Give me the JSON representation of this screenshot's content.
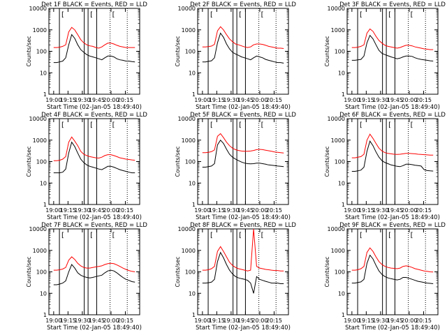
{
  "chart_data": {
    "type": "line",
    "ylabel": "Counts/sec",
    "xlabel": "Start Time (02-Jan-05 18:49:40)",
    "x_tick_labels": [
      "19:00",
      "19:15",
      "19:30",
      "19:45",
      "20:00",
      "20:15"
    ],
    "y_tick_labels": [
      "1",
      "10",
      "100",
      "1000",
      "10000"
    ],
    "ylim": [
      1,
      10000
    ],
    "y_scale": "log",
    "xlim": [
      "18:55",
      "20:30"
    ],
    "legend_marker": "[",
    "vertical_lines_solid": [
      "19:06",
      "19:32",
      "19:36",
      "19:45"
    ],
    "vertical_lines_dotted": [
      "19:59",
      "20:17"
    ],
    "series_colors": {
      "events": "#000000",
      "lld": "#ff0000"
    },
    "panels": [
      {
        "title": "Det 1F BLACK = Events, RED = LLD",
        "events": [
          30,
          30,
          32,
          35,
          50,
          200,
          600,
          400,
          200,
          120,
          90,
          70,
          60,
          55,
          50,
          45,
          40,
          50,
          60,
          60,
          55,
          45,
          40,
          38,
          35,
          35,
          33,
          32
        ],
        "lld": [
          150,
          150,
          155,
          170,
          200,
          800,
          1300,
          1000,
          600,
          350,
          250,
          200,
          180,
          170,
          150,
          140,
          160,
          200,
          240,
          240,
          220,
          190,
          170,
          160,
          150,
          150,
          150,
          150
        ]
      },
      {
        "title": "Det 2F BLACK = Events, RED = LLD",
        "events": [
          32,
          32,
          34,
          36,
          50,
          250,
          700,
          450,
          220,
          130,
          90,
          75,
          65,
          55,
          50,
          45,
          40,
          50,
          60,
          55,
          50,
          42,
          38,
          35,
          32,
          30,
          30,
          28
        ],
        "lld": [
          160,
          160,
          165,
          175,
          210,
          900,
          1400,
          1000,
          600,
          380,
          280,
          220,
          200,
          180,
          160,
          150,
          160,
          200,
          220,
          220,
          210,
          190,
          170,
          160,
          150,
          140,
          140,
          135
        ]
      },
      {
        "title": "Det 3F BLACK = Events, RED = LLD",
        "events": [
          38,
          38,
          40,
          42,
          60,
          250,
          550,
          380,
          200,
          110,
          80,
          70,
          62,
          55,
          50,
          45,
          48,
          55,
          60,
          60,
          58,
          50,
          45,
          42,
          40,
          38,
          36,
          35
        ],
        "lld": [
          150,
          150,
          155,
          170,
          200,
          700,
          1100,
          850,
          500,
          320,
          240,
          190,
          170,
          160,
          150,
          140,
          150,
          170,
          190,
          190,
          180,
          160,
          150,
          140,
          130,
          125,
          120,
          120
        ]
      },
      {
        "title": "Det 4F BLACK = Events, RED = LLD",
        "events": [
          30,
          30,
          30,
          32,
          45,
          250,
          800,
          500,
          250,
          130,
          90,
          70,
          60,
          55,
          50,
          45,
          42,
          50,
          60,
          60,
          55,
          48,
          42,
          38,
          35,
          32,
          30,
          30
        ],
        "lld": [
          110,
          110,
          115,
          130,
          170,
          800,
          1400,
          900,
          550,
          300,
          220,
          190,
          170,
          160,
          150,
          145,
          160,
          190,
          210,
          210,
          190,
          170,
          150,
          140,
          130,
          125,
          120,
          115
        ]
      },
      {
        "title": "Det 5F BLACK = Events, RED = LLD",
        "events": [
          55,
          55,
          58,
          62,
          80,
          600,
          1000,
          700,
          380,
          220,
          160,
          130,
          110,
          95,
          85,
          80,
          78,
          80,
          85,
          85,
          80,
          75,
          70,
          68,
          65,
          62,
          60,
          58
        ],
        "lld": [
          260,
          260,
          270,
          290,
          350,
          1500,
          2000,
          1300,
          800,
          550,
          420,
          360,
          330,
          310,
          300,
          300,
          310,
          330,
          360,
          370,
          360,
          340,
          320,
          300,
          280,
          270,
          260,
          250
        ]
      },
      {
        "title": "Det 6F BLACK = Events, RED = LLD",
        "events": [
          35,
          35,
          37,
          40,
          55,
          300,
          900,
          550,
          280,
          160,
          110,
          90,
          80,
          70,
          65,
          60,
          58,
          65,
          75,
          75,
          72,
          68,
          65,
          62,
          42,
          38,
          37,
          36
        ],
        "lld": [
          150,
          150,
          160,
          170,
          220,
          1000,
          1900,
          1200,
          700,
          420,
          310,
          260,
          240,
          230,
          220,
          215,
          220,
          230,
          240,
          240,
          235,
          230,
          220,
          215,
          210,
          205,
          200,
          200
        ]
      },
      {
        "title": "Det 7F BLACK = Events, RED = LLD",
        "events": [
          25,
          25,
          27,
          30,
          38,
          100,
          220,
          150,
          90,
          70,
          60,
          55,
          52,
          55,
          60,
          65,
          70,
          90,
          110,
          120,
          110,
          90,
          70,
          55,
          45,
          40,
          35,
          33
        ],
        "lld": [
          120,
          120,
          125,
          135,
          160,
          350,
          500,
          380,
          250,
          190,
          160,
          150,
          150,
          160,
          170,
          180,
          190,
          220,
          240,
          250,
          240,
          210,
          180,
          150,
          130,
          115,
          105,
          100
        ]
      },
      {
        "title": "Det 8F BLACK = Events, RED = LLD",
        "events": [
          30,
          30,
          31,
          33,
          45,
          300,
          800,
          450,
          220,
          120,
          80,
          60,
          52,
          48,
          45,
          40,
          30,
          10,
          60,
          45,
          40,
          36,
          33,
          30,
          30,
          30,
          28,
          28
        ],
        "lld": [
          120,
          120,
          125,
          140,
          180,
          900,
          1500,
          900,
          500,
          280,
          200,
          160,
          140,
          130,
          120,
          110,
          120,
          10000,
          180,
          150,
          140,
          130,
          125,
          120,
          115,
          115,
          110,
          110
        ]
      },
      {
        "title": "Det 9F BLACK = Events, RED = LLD",
        "events": [
          30,
          30,
          32,
          34,
          45,
          250,
          600,
          400,
          200,
          110,
          75,
          60,
          52,
          48,
          45,
          42,
          45,
          55,
          55,
          50,
          45,
          40,
          36,
          34,
          32,
          30,
          29,
          28
        ],
        "lld": [
          120,
          120,
          125,
          140,
          180,
          800,
          1300,
          900,
          500,
          300,
          220,
          180,
          160,
          150,
          145,
          140,
          150,
          180,
          190,
          180,
          160,
          140,
          130,
          120,
          110,
          105,
          100,
          98
        ]
      }
    ]
  }
}
